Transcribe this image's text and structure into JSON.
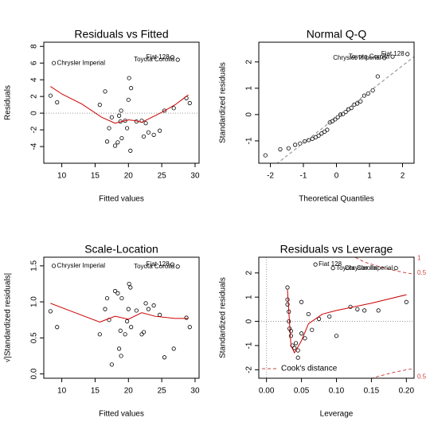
{
  "chart_data": [
    {
      "type": "scatter",
      "title": "Residuals vs Fitted",
      "xlabel": "Fitted values",
      "ylabel": "Residuals",
      "xlim": [
        7.3,
        30.6
      ],
      "ylim": [
        -6.0,
        8.5
      ],
      "xticks": [
        10,
        15,
        20,
        25,
        30
      ],
      "yticks": [
        -4,
        -2,
        0,
        2,
        4,
        6,
        8
      ],
      "hlines": [
        0
      ],
      "vlines": [],
      "series": [
        {
          "kind": "points",
          "color": "#000000",
          "x": [
            8.3,
            8.8,
            9.3,
            15.7,
            16.5,
            16.8,
            17.1,
            17.5,
            18.0,
            18.4,
            18.6,
            18.8,
            18.9,
            19.0,
            19.5,
            19.8,
            20.0,
            20.1,
            20.3,
            20.4,
            21.2,
            22.0,
            22.3,
            22.6,
            23.0,
            23.8,
            24.7,
            25.4,
            26.6,
            26.8,
            27.4,
            28.7,
            29.2
          ],
          "values": [
            2.1,
            6.0,
            1.3,
            1.0,
            2.6,
            -3.4,
            -1.8,
            -0.5,
            -3.9,
            -3.5,
            -0.3,
            -1.0,
            0.3,
            -3.0,
            -0.9,
            -1.8,
            1.6,
            4.2,
            -4.5,
            3.0,
            -1.0,
            -0.9,
            -2.8,
            -1.2,
            -2.3,
            -2.6,
            -2.1,
            0.3,
            6.7,
            0.6,
            6.4,
            1.8,
            1.2
          ]
        },
        {
          "kind": "line",
          "color": "#cc0000",
          "style": "solid",
          "x": [
            8.3,
            10,
            13,
            16,
            18,
            19,
            20,
            21,
            22,
            23,
            25,
            27,
            29
          ],
          "values": [
            3.2,
            2.3,
            1.1,
            -0.5,
            -1.2,
            -1.0,
            -0.8,
            -0.9,
            -1.1,
            -0.7,
            0.1,
            1.0,
            2.2
          ]
        }
      ],
      "annotations": [
        {
          "text": "Chrysler Imperial",
          "x": 8.8,
          "y": 6.0
        },
        {
          "text": "Fiat 128",
          "x": 26.6,
          "y": 6.7
        },
        {
          "text": "Toyota Corolla",
          "x": 27.4,
          "y": 6.4
        }
      ]
    },
    {
      "type": "scatter",
      "title": "Normal Q-Q",
      "xlabel": "Theoretical Quantiles",
      "ylabel": "Standardized residuals",
      "xlim": [
        -2.35,
        2.35
      ],
      "ylim": [
        -1.85,
        2.75
      ],
      "xticks": [
        -2,
        -1,
        0,
        1,
        2
      ],
      "yticks": [
        -1,
        0,
        1,
        2
      ],
      "hlines": [],
      "vlines": [],
      "series": [
        {
          "kind": "points",
          "color": "#000000",
          "x": [
            -2.15,
            -1.7,
            -1.45,
            -1.25,
            -1.1,
            -0.96,
            -0.84,
            -0.73,
            -0.63,
            -0.54,
            -0.45,
            -0.36,
            -0.28,
            -0.2,
            -0.12,
            -0.04,
            0.04,
            0.12,
            0.2,
            0.28,
            0.36,
            0.45,
            0.54,
            0.63,
            0.73,
            0.84,
            0.96,
            1.1,
            1.25,
            1.45,
            1.7,
            2.15
          ],
          "values": [
            -1.55,
            -1.32,
            -1.28,
            -1.15,
            -1.1,
            -1.02,
            -0.97,
            -0.92,
            -0.86,
            -0.8,
            -0.72,
            -0.65,
            -0.58,
            -0.3,
            -0.25,
            -0.18,
            -0.1,
            0.0,
            0.02,
            0.1,
            0.2,
            0.25,
            0.38,
            0.42,
            0.5,
            0.72,
            0.8,
            0.92,
            1.45,
            2.15,
            2.2,
            2.3
          ]
        },
        {
          "kind": "line",
          "color": "#888888",
          "style": "dashed",
          "x": [
            -2.35,
            2.35
          ],
          "values": [
            -2.4,
            2.2
          ]
        }
      ],
      "annotations": [
        {
          "text": "Chrysler Imperial",
          "x": 1.45,
          "y": 2.15
        },
        {
          "text": "Toyota Corolla",
          "x": 1.7,
          "y": 2.2
        },
        {
          "text": "Fiat 128",
          "x": 2.15,
          "y": 2.3
        }
      ]
    },
    {
      "type": "scatter",
      "title": "Scale-Location",
      "xlabel": "Fitted values",
      "ylabel": "√|Standardized residuals|",
      "xlim": [
        7.3,
        30.6
      ],
      "ylim": [
        -0.06,
        1.62
      ],
      "xticks": [
        10,
        15,
        20,
        25,
        30
      ],
      "yticks": [
        {
          "value": 0,
          "label": "0.0"
        },
        0.5,
        {
          "value": 1,
          "label": "1.0"
        },
        1.5
      ],
      "hlines": [],
      "vlines": [],
      "series": [
        {
          "kind": "points",
          "color": "#000000",
          "x": [
            8.3,
            8.8,
            9.3,
            15.7,
            16.5,
            16.8,
            17.1,
            17.5,
            18.0,
            18.4,
            18.6,
            18.8,
            18.9,
            19.0,
            19.5,
            19.8,
            20.0,
            20.1,
            20.3,
            20.4,
            21.2,
            22.0,
            22.3,
            22.6,
            23.0,
            23.8,
            24.7,
            25.4,
            26.6,
            26.8,
            27.4,
            28.7,
            29.2
          ],
          "values": [
            0.87,
            1.5,
            0.65,
            0.55,
            0.9,
            1.05,
            0.75,
            0.13,
            1.15,
            1.12,
            0.35,
            0.6,
            0.25,
            1.05,
            0.55,
            0.73,
            0.9,
            1.25,
            1.2,
            0.65,
            0.88,
            0.55,
            0.58,
            0.98,
            0.9,
            0.95,
            0.82,
            0.23,
            1.52,
            0.35,
            1.49,
            0.78,
            0.65
          ]
        },
        {
          "kind": "line",
          "color": "#cc0000",
          "style": "solid",
          "x": [
            8.3,
            12,
            15.7,
            18,
            20,
            22,
            24,
            27,
            29
          ],
          "values": [
            0.98,
            0.85,
            0.72,
            0.8,
            0.76,
            0.85,
            0.8,
            0.77,
            0.77
          ]
        }
      ],
      "annotations": [
        {
          "text": "Chrysler Imperial",
          "x": 8.8,
          "y": 1.5
        },
        {
          "text": "Fiat 128",
          "x": 26.6,
          "y": 1.52
        },
        {
          "text": "Toyota Corolla",
          "x": 27.4,
          "y": 1.49
        }
      ]
    },
    {
      "type": "scatter",
      "title": "Residuals vs Leverage",
      "xlabel": "Leverage",
      "ylabel": "Standardized residuals",
      "xlim": [
        -0.011,
        0.211
      ],
      "ylim": [
        -2.35,
        2.65
      ],
      "xticks": [
        {
          "value": 0,
          "label": "0.00"
        },
        0.05,
        {
          "value": 0.1,
          "label": "0.10"
        },
        0.15,
        {
          "value": 0.2,
          "label": "0.20"
        }
      ],
      "yticks": [
        -2,
        -1,
        0,
        1,
        2
      ],
      "hlines": [
        0
      ],
      "vlines": [
        0
      ],
      "series": [
        {
          "kind": "points",
          "color": "#000000",
          "x": [
            0.03,
            0.03,
            0.03,
            0.032,
            0.032,
            0.033,
            0.035,
            0.035,
            0.037,
            0.04,
            0.042,
            0.045,
            0.045,
            0.05,
            0.05,
            0.055,
            0.06,
            0.065,
            0.07,
            0.075,
            0.09,
            0.095,
            0.1,
            0.12,
            0.13,
            0.14,
            0.16,
            0.185,
            0.2
          ],
          "values": [
            1.4,
            0.9,
            0.7,
            0.4,
            0.0,
            -0.3,
            -0.4,
            -0.6,
            -1.0,
            -1.1,
            -0.9,
            -1.5,
            -1.2,
            0.8,
            -0.5,
            -0.7,
            0.3,
            -0.35,
            2.35,
            0.1,
            0.2,
            2.2,
            -0.6,
            0.6,
            0.5,
            0.45,
            0.45,
            2.2,
            0.8
          ]
        },
        {
          "kind": "line",
          "color": "#cc0000",
          "style": "solid",
          "x": [
            0.03,
            0.035,
            0.04,
            0.05,
            0.06,
            0.08,
            0.1,
            0.15,
            0.2
          ],
          "values": [
            1.3,
            -1.0,
            -1.3,
            -0.8,
            -0.1,
            0.3,
            0.45,
            0.75,
            1.1
          ]
        },
        {
          "kind": "line",
          "color": "#cc4444",
          "style": "dashed",
          "x": [
            0.12,
            0.14,
            0.16,
            0.18,
            0.2,
            0.211
          ],
          "values": [
            2.75,
            2.45,
            2.27,
            2.12,
            2.0,
            1.95
          ]
        },
        {
          "kind": "line",
          "color": "#cc4444",
          "style": "dashed",
          "x": [
            0.12,
            0.14,
            0.16,
            0.18,
            0.2,
            0.211
          ],
          "values": [
            -2.75,
            -2.45,
            -2.27,
            -2.12,
            -2.0,
            -1.95
          ]
        }
      ],
      "annotations": [
        {
          "text": "Fiat 128",
          "x": 0.07,
          "y": 2.35
        },
        {
          "text": "Toyota Corolla",
          "x": 0.095,
          "y": 2.2
        },
        {
          "text": "Chrysler Imperial",
          "x": 0.185,
          "y": 2.2
        }
      ],
      "contour_labels": [
        {
          "value": 2.6,
          "label": "1"
        },
        {
          "value": 2.0,
          "label": "0.5"
        },
        {
          "value": -2.3,
          "label": "0.5"
        }
      ],
      "contour_color": "#cc4444",
      "legend": {
        "label": "Cook's distance",
        "color": "#cc4444"
      }
    }
  ]
}
